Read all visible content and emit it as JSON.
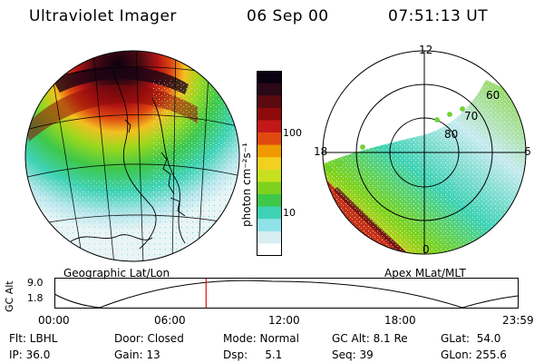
{
  "header": {
    "title": "Ultraviolet Imager",
    "date": "06 Sep 00",
    "time": "07:51:13 UT"
  },
  "left_panel": {
    "caption": "Geographic Lat/Lon"
  },
  "colorbar": {
    "unit_label": "photon cm⁻²s⁻¹",
    "scale": "log",
    "tick_labels": [
      "100",
      "10"
    ],
    "colors": [
      "#0a0010",
      "#2a0818",
      "#5a0a10",
      "#8e0a0a",
      "#c21818",
      "#e04a10",
      "#f09a00",
      "#f3d020",
      "#c6e020",
      "#7ed21e",
      "#3ec84a",
      "#3ed2b4",
      "#8ee2e8",
      "#d8eef2",
      "#ffffff"
    ]
  },
  "right_panel": {
    "caption": "Apex MLat/MLT",
    "mlt_labels": {
      "top": "12",
      "left": "18",
      "right": "6",
      "bottom": "0"
    },
    "mlat_labels": [
      "60",
      "70",
      "80"
    ]
  },
  "orbit_plot": {
    "ylabel": "GC Alt",
    "y_ticks": [
      "9.0",
      "1.8"
    ],
    "x_ticks": [
      "00:00",
      "06:00",
      "12:00",
      "18:00",
      "23:59"
    ],
    "marker_time": "07:51",
    "marker_color": "#e01010"
  },
  "footer": {
    "row1": {
      "filter": "Flt: LBHL",
      "door": "Door: Closed",
      "mode": "Mode: Normal",
      "gc_alt": "GC Alt: 8.1 Re",
      "glat": "GLat:  54.0"
    },
    "row2": {
      "ip": "IP: 36.0",
      "gain": "Gain: 13",
      "dsp": "Dsp:     5.1",
      "seq": "Seq: 39",
      "glon": "GLon: 255.6"
    }
  }
}
